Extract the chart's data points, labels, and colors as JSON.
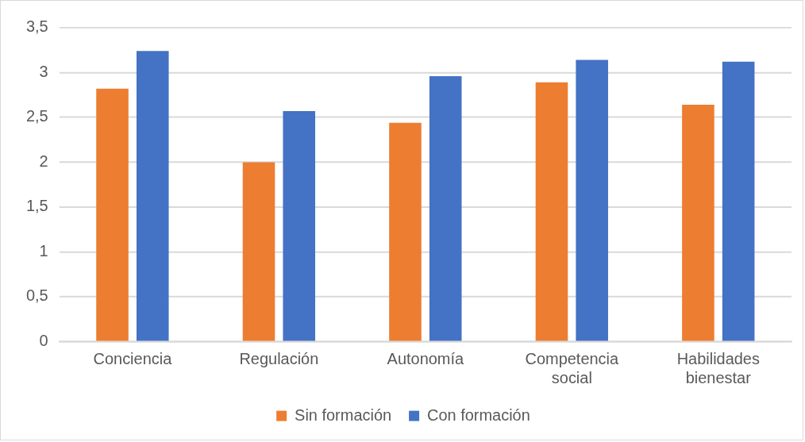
{
  "chart_data": {
    "type": "bar",
    "categories": [
      "Conciencia",
      "Regulación",
      "Autonomía",
      "Competencia social",
      "Habilidades bienestar"
    ],
    "series": [
      {
        "name": "Sin formación",
        "color": "#ed7d31",
        "values": [
          2.82,
          2.0,
          2.44,
          2.89,
          2.64
        ]
      },
      {
        "name": "Con formación",
        "color": "#4472c4",
        "values": [
          3.24,
          2.57,
          2.96,
          3.14,
          3.12
        ]
      }
    ],
    "ylim": [
      0,
      3.5
    ],
    "yticks": [
      0,
      {
        "value": 0.5,
        "label": "0,5"
      },
      1,
      {
        "value": 1.5,
        "label": "1,5"
      },
      2,
      {
        "value": 2.5,
        "label": "2,5"
      },
      3,
      {
        "value": 3.5,
        "label": "3,5"
      }
    ],
    "grid": "y",
    "legend": "bottom"
  }
}
